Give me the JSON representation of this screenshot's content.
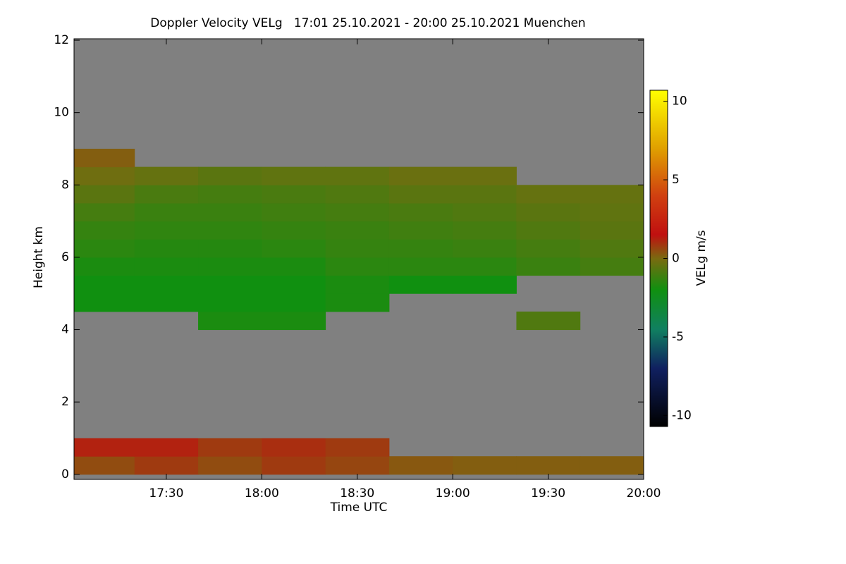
{
  "chart_data": {
    "type": "heatmap",
    "title": "Doppler Velocity VELg   17:01 25.10.2021 - 20:00 25.10.2021 Muenchen",
    "xlabel": "Time UTC",
    "ylabel": "Height km",
    "colorbar_label": "VELg m/s",
    "xlim": [
      17.0167,
      20.0
    ],
    "xticks": [
      {
        "value": 17.5,
        "label": "17:30"
      },
      {
        "value": 18,
        "label": "18:00"
      },
      {
        "value": 18.5,
        "label": "18:30"
      },
      {
        "value": 19,
        "label": "19:00"
      },
      {
        "value": 19.5,
        "label": "19:30"
      },
      {
        "value": 20,
        "label": "20:00"
      }
    ],
    "ylim": [
      -0.14,
      12.04
    ],
    "yticks": [
      0,
      2,
      4,
      6,
      8,
      10,
      12
    ],
    "clim": [
      -10.7,
      10.7
    ],
    "cticks": [
      -10,
      -5,
      0,
      5,
      10
    ],
    "nodata_color": "#808080",
    "colorscale": [
      {
        "value": -10.7,
        "color": "#000000"
      },
      {
        "value": -7,
        "color": "#102060"
      },
      {
        "value": -4.5,
        "color": "#108060"
      },
      {
        "value": -2,
        "color": "#109010"
      },
      {
        "value": 0,
        "color": "#7a6a10"
      },
      {
        "value": 1.5,
        "color": "#c01010"
      },
      {
        "value": 4,
        "color": "#d04010"
      },
      {
        "value": 7,
        "color": "#e0a000"
      },
      {
        "value": 10.7,
        "color": "#ffff00"
      }
    ],
    "x_edges": [
      17.0167,
      17.3333,
      17.6667,
      18,
      18.3333,
      18.6667,
      19,
      19.3333,
      19.6667,
      20
    ],
    "y_edges": [
      0,
      0.5,
      1,
      1.5,
      2,
      2.5,
      3,
      3.5,
      4,
      4.5,
      5,
      5.5,
      6,
      6.5,
      7,
      7.5,
      8,
      8.5,
      9
    ],
    "z": [
      [
        0.5,
        0.8,
        0.5,
        0.8,
        0.6,
        0.3,
        0.2,
        0.2,
        0.2
      ],
      [
        1.2,
        1.2,
        0.8,
        1.0,
        0.8,
        null,
        null,
        null,
        null
      ],
      [
        null,
        null,
        null,
        null,
        null,
        null,
        null,
        null,
        null
      ],
      [
        null,
        null,
        null,
        null,
        null,
        null,
        null,
        null,
        null
      ],
      [
        null,
        null,
        null,
        null,
        null,
        null,
        null,
        null,
        null
      ],
      [
        null,
        null,
        null,
        null,
        null,
        null,
        null,
        null,
        null
      ],
      [
        null,
        null,
        null,
        null,
        null,
        null,
        null,
        null,
        null
      ],
      [
        null,
        null,
        null,
        null,
        null,
        null,
        null,
        null,
        null
      ],
      [
        null,
        null,
        -1.8,
        -1.8,
        null,
        null,
        null,
        -0.8,
        null
      ],
      [
        -2,
        -2,
        -2,
        -2,
        -1.8,
        null,
        null,
        null,
        null
      ],
      [
        -2,
        -2,
        -2,
        -2,
        -1.8,
        -2,
        -2,
        null,
        null
      ],
      [
        -1.8,
        -1.8,
        -1.8,
        -1.8,
        -1.5,
        -1.5,
        -1.5,
        -1.2,
        -1
      ],
      [
        -1.5,
        -1.6,
        -1.6,
        -1.5,
        -1.3,
        -1.3,
        -1.2,
        -1,
        -0.8
      ],
      [
        -1.3,
        -1.4,
        -1.4,
        -1.3,
        -1.2,
        -1.1,
        -1,
        -0.8,
        -0.6
      ],
      [
        -1,
        -1.2,
        -1.2,
        -1.1,
        -1,
        -0.9,
        -0.8,
        -0.6,
        -0.5
      ],
      [
        -0.6,
        -0.9,
        -1,
        -0.9,
        -0.8,
        -0.6,
        -0.6,
        -0.4,
        -0.4
      ],
      [
        -0.2,
        -0.4,
        -0.6,
        -0.5,
        -0.5,
        -0.3,
        -0.3,
        null,
        null
      ],
      [
        0.2,
        null,
        null,
        null,
        null,
        null,
        null,
        null,
        null
      ]
    ]
  }
}
